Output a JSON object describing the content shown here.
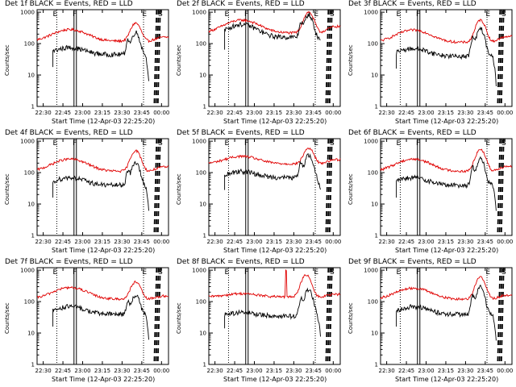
{
  "figure": {
    "panel_titles": [
      "Det 1f BLACK = Events, RED = LLD",
      "Det 2f BLACK = Events, RED = LLD",
      "Det 3f BLACK = Events, RED = LLD",
      "Det 4f BLACK = Events, RED = LLD",
      "Det 5f BLACK = Events, RED = LLD",
      "Det 6f BLACK = Events, RED = LLD",
      "Det 7f BLACK = Events, RED = LLD",
      "Det 8f BLACK = Events, RED = LLD",
      "Det 9f BLACK = Events, RED = LLD"
    ],
    "ylabel": "Counts/sec",
    "xlabel": "Start Time (12-Apr-03 22:25:20)",
    "yticks": [
      "1",
      "10",
      "100",
      "1000"
    ],
    "xticks": [
      "22:30",
      "22:45",
      "23:00",
      "23:15",
      "23:30",
      "23:45",
      "00:00"
    ],
    "markers": [
      "E",
      "F",
      "E",
      "S"
    ],
    "colors": {
      "events": "#000000",
      "lld": "#e00000",
      "axes": "#000000"
    }
  },
  "chart_data": {
    "type": "line",
    "y_scale": "log",
    "ylim": [
      1,
      1000
    ],
    "x_units": "minutes after 22:25:20",
    "xlim": [
      0,
      100
    ],
    "marker_times_min": {
      "E1": 15,
      "F": 29,
      "E2": 81,
      "S": 91
    },
    "series_names": [
      "Events",
      "LLD"
    ],
    "panels": [
      {
        "detector": "1f",
        "lld": {
          "base": 120,
          "peak1_t": 25,
          "peak1": 280,
          "peak2_t": 75,
          "peak2": 450,
          "bump_t": 0,
          "bump": 0,
          "tail": 160
        },
        "events": {
          "start_t": 12,
          "base": 45,
          "peak1_t": 25,
          "peak1": 75,
          "peak2_t": 75,
          "peak2": 230,
          "spike_t": 0,
          "spike": 0,
          "end_t": 85,
          "drop": 6
        }
      },
      {
        "detector": "2f",
        "lld": {
          "base": 220,
          "peak1_t": 25,
          "peak1": 560,
          "peak2_t": 76,
          "peak2": 1000,
          "bump_t": 0,
          "bump": 0,
          "tail": 350
        },
        "events": {
          "start_t": 12,
          "base": 160,
          "peak1_t": 25,
          "peak1": 410,
          "peak2_t": 76,
          "peak2": 850,
          "spike_t": 0,
          "spike": 0,
          "end_t": 85,
          "drop": 130
        }
      },
      {
        "detector": "3f",
        "lld": {
          "base": 110,
          "peak1_t": 25,
          "peak1": 270,
          "peak2_t": 76,
          "peak2": 560,
          "bump_t": 0,
          "bump": 0,
          "tail": 170
        },
        "events": {
          "start_t": 12,
          "base": 40,
          "peak1_t": 25,
          "peak1": 70,
          "peak2_t": 76,
          "peak2": 300,
          "spike_t": 0,
          "spike": 0,
          "end_t": 88,
          "drop": 5
        }
      },
      {
        "detector": "4f",
        "lld": {
          "base": 110,
          "peak1_t": 25,
          "peak1": 270,
          "peak2_t": 75,
          "peak2": 500,
          "bump_t": 0,
          "bump": 0,
          "tail": 150
        },
        "events": {
          "start_t": 12,
          "base": 40,
          "peak1_t": 25,
          "peak1": 70,
          "peak2_t": 75,
          "peak2": 210,
          "spike_t": 0,
          "spike": 0,
          "end_t": 85,
          "drop": 7
        }
      },
      {
        "detector": "5f",
        "lld": {
          "base": 190,
          "peak1_t": 25,
          "peak1": 330,
          "peak2_t": 76,
          "peak2": 600,
          "bump_t": 0,
          "bump": 0,
          "tail": 260
        },
        "events": {
          "start_t": 12,
          "base": 70,
          "peak1_t": 25,
          "peak1": 110,
          "peak2_t": 76,
          "peak2": 360,
          "spike_t": 0,
          "spike": 0,
          "end_t": 85,
          "drop": 25
        }
      },
      {
        "detector": "6f",
        "lld": {
          "base": 110,
          "peak1_t": 25,
          "peak1": 270,
          "peak2_t": 76,
          "peak2": 550,
          "bump_t": 0,
          "bump": 0,
          "tail": 160
        },
        "events": {
          "start_t": 12,
          "base": 40,
          "peak1_t": 25,
          "peak1": 70,
          "peak2_t": 76,
          "peak2": 280,
          "spike_t": 0,
          "spike": 0,
          "end_t": 88,
          "drop": 6
        }
      },
      {
        "detector": "7f",
        "lld": {
          "base": 120,
          "peak1_t": 25,
          "peak1": 280,
          "peak2_t": 75,
          "peak2": 420,
          "bump_t": 0,
          "bump": 0,
          "tail": 150
        },
        "events": {
          "start_t": 12,
          "base": 40,
          "peak1_t": 25,
          "peak1": 70,
          "peak2_t": 75,
          "peak2": 160,
          "spike_t": 0,
          "spike": 0,
          "end_t": 85,
          "drop": 6
        }
      },
      {
        "detector": "8f",
        "lld": {
          "base": 140,
          "peak1_t": 25,
          "peak1": 180,
          "peak2_t": 74,
          "peak2": 700,
          "bump_t": 58,
          "bump": 1000,
          "tail": 170
        },
        "events": {
          "start_t": 12,
          "base": 35,
          "peak1_t": 25,
          "peak1": 45,
          "peak2_t": 76,
          "peak2": 250,
          "spike_t": 0,
          "spike": 0,
          "end_t": 85,
          "drop": 8
        }
      },
      {
        "detector": "9f",
        "lld": {
          "base": 120,
          "peak1_t": 25,
          "peak1": 270,
          "peak2_t": 76,
          "peak2": 600,
          "bump_t": 0,
          "bump": 0,
          "tail": 160
        },
        "events": {
          "start_t": 12,
          "base": 40,
          "peak1_t": 25,
          "peak1": 70,
          "peak2_t": 76,
          "peak2": 290,
          "spike_t": 0,
          "spike": 0,
          "end_t": 88,
          "drop": 5
        }
      }
    ]
  }
}
